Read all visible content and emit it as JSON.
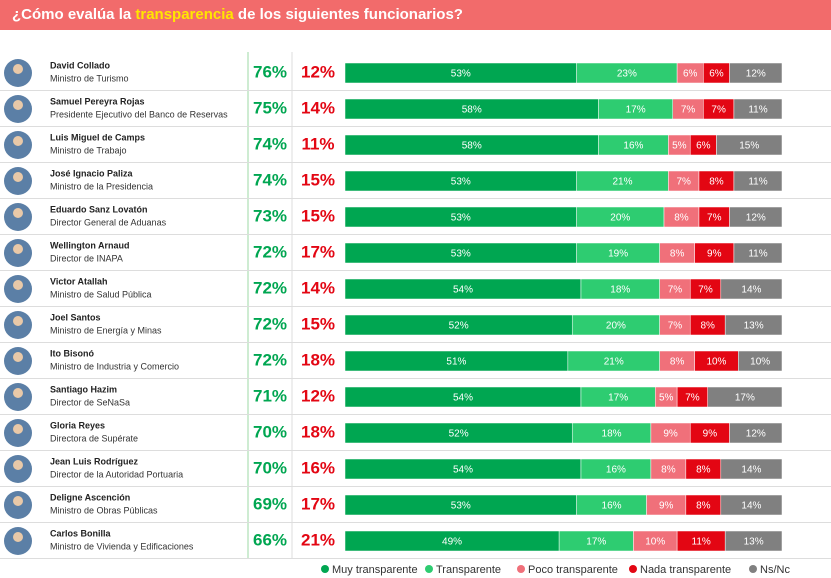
{
  "chart_data": {
    "type": "stacked-bar",
    "title": {
      "before": "¿Cómo evalúa la ",
      "highlight": "transparencia",
      "after": " de los siguientes funcionarios?"
    },
    "categories": [
      "David Collado",
      "Samuel Pereyra Rojas",
      "Luis Miguel de Camps",
      "José Ignacio Paliza",
      "Eduardo Sanz Lovatón",
      "Wellington Arnaud",
      "Victor Atallah",
      "Joel Santos",
      "Ito Bisonó",
      "Santiago Hazim",
      "Gloria Reyes",
      "Jean Luis Rodríguez",
      "Deligne Ascención",
      "Carlos Bonilla"
    ],
    "roles": [
      "Ministro de Turismo",
      "Presidente Ejecutivo del Banco de Reservas",
      "Ministro de Trabajo",
      "Ministro de la Presidencia",
      "Director General de Aduanas",
      "Director de INAPA",
      "Ministro de Salud Pública",
      "Ministro de Energía y Minas",
      "Ministro de Industria y Comercio",
      "Director de SeNaSa",
      "Directora de Supérate",
      "Director de la Autoridad Portuaria",
      "Ministro de Obras Públicas",
      "Ministro de Vivienda y Edificaciones"
    ],
    "positive": [
      "76%",
      "75%",
      "74%",
      "74%",
      "73%",
      "72%",
      "72%",
      "72%",
      "72%",
      "71%",
      "70%",
      "70%",
      "69%",
      "66%"
    ],
    "negative": [
      "12%",
      "14%",
      "11%",
      "15%",
      "15%",
      "17%",
      "14%",
      "15%",
      "18%",
      "12%",
      "18%",
      "16%",
      "17%",
      "21%"
    ],
    "series": [
      {
        "name": "Muy transparente",
        "color": "#00a651",
        "values": [
          53,
          58,
          58,
          53,
          53,
          53,
          54,
          52,
          51,
          54,
          52,
          54,
          53,
          49
        ],
        "value_labels": [
          "53%",
          "58%",
          "58%",
          "53%",
          "53%",
          "53%",
          "54%",
          "52%",
          "51%",
          "54%",
          "52%",
          "54%",
          "53%",
          "49%"
        ]
      },
      {
        "name": "Transparente",
        "color": "#2ecc71",
        "values": [
          23,
          17,
          16,
          21,
          20,
          19,
          18,
          20,
          21,
          17,
          18,
          16,
          16,
          17
        ],
        "value_labels": [
          "23%",
          "17%",
          "16%",
          "21%",
          "20%",
          "19%",
          "18%",
          "20%",
          "21%",
          "17%",
          "18%",
          "16%",
          "16%",
          "17%"
        ]
      },
      {
        "name": "Poco transparente",
        "color": "#f0707a",
        "values": [
          6,
          7,
          5,
          7,
          8,
          8,
          7,
          7,
          8,
          5,
          9,
          8,
          9,
          10
        ],
        "value_labels": [
          "6%",
          "7%",
          "5%",
          "7%",
          "8%",
          "8%",
          "7%",
          "7%",
          "8%",
          "5%",
          "9%",
          "8%",
          "9%",
          "10%"
        ]
      },
      {
        "name": "Nada transparente",
        "color": "#e30613",
        "values": [
          6,
          7,
          6,
          8,
          7,
          9,
          7,
          8,
          10,
          7,
          9,
          8,
          8,
          11
        ],
        "value_labels": [
          "6%",
          "7%",
          "6%",
          "8%",
          "7%",
          "9%",
          "7%",
          "8%",
          "10%",
          "7%",
          "9%",
          "8%",
          "8%",
          "11%"
        ]
      },
      {
        "name": "Ns/Nc",
        "color": "#808080",
        "values": [
          12,
          11,
          15,
          11,
          12,
          11,
          14,
          13,
          10,
          17,
          12,
          14,
          14,
          13
        ],
        "value_labels": [
          "12%",
          "11%",
          "15%",
          "11%",
          "12%",
          "11%",
          "14%",
          "13%",
          "10%",
          "17%",
          "12%",
          "14%",
          "14%",
          "13%"
        ]
      }
    ]
  }
}
